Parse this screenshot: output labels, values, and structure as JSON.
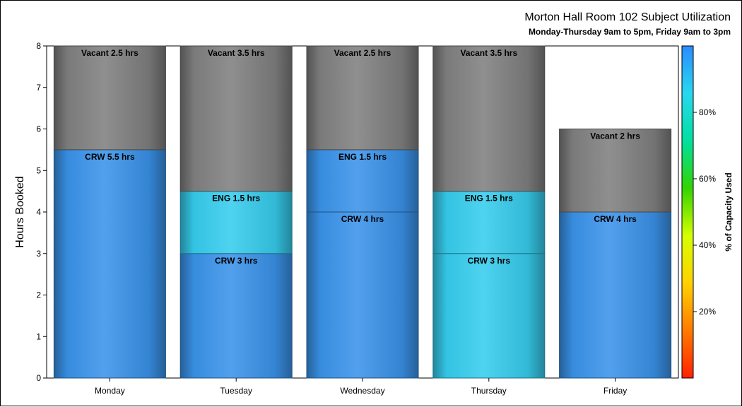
{
  "chart_data": {
    "type": "bar",
    "stacked": true,
    "title": "Morton Hall Room 102 Subject Utilization",
    "subtitle": "Monday-Thursday 9am to 5pm, Friday 9am to 3pm",
    "xlabel": "",
    "ylabel": "Hours Booked",
    "ylim": [
      0,
      8
    ],
    "yticks": [
      "0",
      "1",
      "2",
      "3",
      "4",
      "5",
      "6",
      "7",
      "8"
    ],
    "grid": false,
    "categories": [
      "Monday",
      "Tuesday",
      "Wednesday",
      "Thursday",
      "Friday"
    ],
    "bars": [
      {
        "day": "Monday",
        "segments": [
          {
            "subject": "CRW",
            "hours": 5.5,
            "label": "CRW 5.5 hrs",
            "color": "#3a93ea"
          },
          {
            "subject": "Vacant",
            "hours": 2.5,
            "label": "Vacant 2.5 hrs",
            "color": "#808080"
          }
        ]
      },
      {
        "day": "Tuesday",
        "segments": [
          {
            "subject": "CRW",
            "hours": 3,
            "label": "CRW 3 hrs",
            "color": "#3a93ea"
          },
          {
            "subject": "ENG",
            "hours": 1.5,
            "label": "ENG 1.5 hrs",
            "color": "#36cdee"
          },
          {
            "subject": "Vacant",
            "hours": 3.5,
            "label": "Vacant 3.5 hrs",
            "color": "#808080"
          }
        ]
      },
      {
        "day": "Wednesday",
        "segments": [
          {
            "subject": "CRW",
            "hours": 4,
            "label": "CRW 4 hrs",
            "color": "#3a93ea"
          },
          {
            "subject": "ENG",
            "hours": 1.5,
            "label": "ENG 1.5 hrs",
            "color": "#3a93ea"
          },
          {
            "subject": "Vacant",
            "hours": 2.5,
            "label": "Vacant 2.5 hrs",
            "color": "#808080"
          }
        ]
      },
      {
        "day": "Thursday",
        "segments": [
          {
            "subject": "CRW",
            "hours": 3,
            "label": "CRW 3 hrs",
            "color": "#36cdee"
          },
          {
            "subject": "ENG",
            "hours": 1.5,
            "label": "ENG 1.5 hrs",
            "color": "#36cdee"
          },
          {
            "subject": "Vacant",
            "hours": 3.5,
            "label": "Vacant 3.5 hrs",
            "color": "#808080"
          }
        ]
      },
      {
        "day": "Friday",
        "segments": [
          {
            "subject": "CRW",
            "hours": 4,
            "label": "CRW 4 hrs",
            "color": "#3a93ea"
          },
          {
            "subject": "Vacant",
            "hours": 2,
            "label": "Vacant 2 hrs",
            "color": "#808080"
          }
        ]
      }
    ],
    "colorbar": {
      "label": "% of Capacity Used",
      "range": [
        0,
        100
      ],
      "ticks": [
        {
          "value": 20,
          "label": "20%"
        },
        {
          "value": 40,
          "label": "40%"
        },
        {
          "value": 60,
          "label": "60%"
        },
        {
          "value": 80,
          "label": "80%"
        }
      ],
      "colors": [
        "#ff2200",
        "#ff7a00",
        "#ffd200",
        "#d6ff00",
        "#33d400",
        "#00e0a0",
        "#28d8f0",
        "#2a8cff"
      ]
    },
    "legend": "colorbar-right"
  }
}
